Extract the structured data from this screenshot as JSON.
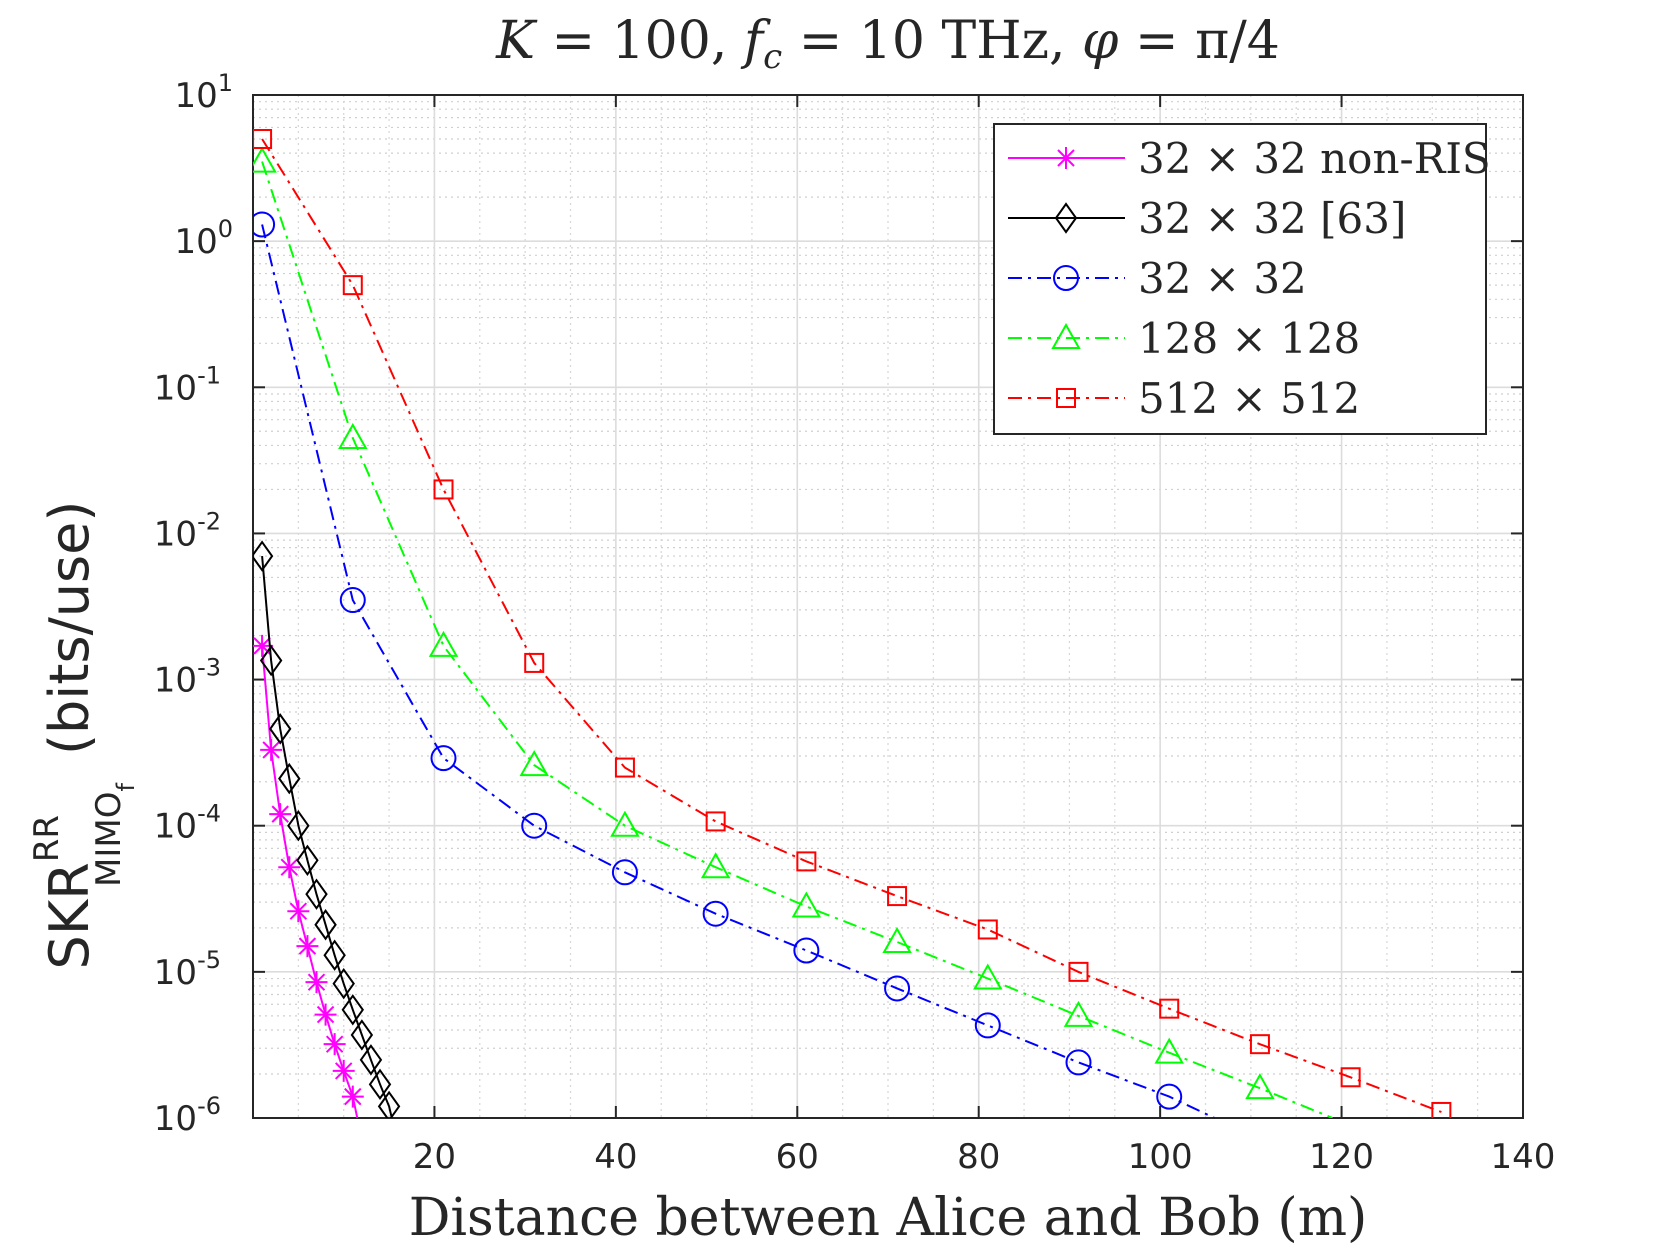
{
  "chart_data": {
    "type": "line",
    "title": "K = 100, f_c = 10 THz, φ = π/4",
    "title_parts": {
      "k": "K",
      "eq1": " = 100, ",
      "f": "f",
      "fsub": "c",
      "eq2": " = 10 THz, ",
      "phi": "φ",
      "eq3": " = π/4"
    },
    "xlabel": "Distance between Alice and Bob (m)",
    "ylabel": {
      "main": "SKR",
      "sup": "RR",
      "sub": "MIMO",
      "subsub": "f",
      "unit": "(bits/use)"
    },
    "xscale": "linear",
    "yscale": "log",
    "xlim": [
      0,
      140
    ],
    "ylim": [
      1e-06,
      10
    ],
    "xticks": [
      20,
      40,
      60,
      80,
      100,
      120,
      140
    ],
    "xtick_labels": [
      "20",
      "40",
      "60",
      "80",
      "100",
      "120",
      "140"
    ],
    "yticks": [
      {
        "value": 10,
        "base": "10",
        "exp": "1"
      },
      {
        "value": 1,
        "base": "10",
        "exp": "0"
      },
      {
        "value": 0.1,
        "base": "10",
        "exp": "-1"
      },
      {
        "value": 0.01,
        "base": "10",
        "exp": "-2"
      },
      {
        "value": 0.001,
        "base": "10",
        "exp": "-3"
      },
      {
        "value": 0.0001,
        "base": "10",
        "exp": "-4"
      },
      {
        "value": 1e-05,
        "base": "10",
        "exp": "-5"
      },
      {
        "value": 1e-06,
        "base": "10",
        "exp": "-6"
      }
    ],
    "grid": true,
    "minor_grid": true,
    "legend_position": "top-right",
    "series": [
      {
        "name": "32 × 32 non-RIS",
        "color": "#ff00ff",
        "marker": "asterisk",
        "linestyle": "solid",
        "x": [
          1,
          2,
          3,
          4,
          5,
          6,
          7,
          8,
          9,
          10,
          11
        ],
        "y": [
          0.0017,
          0.00033,
          0.00012,
          5.2e-05,
          2.6e-05,
          1.5e-05,
          8.5e-06,
          5.1e-06,
          3.2e-06,
          2.1e-06,
          1.4e-06
        ],
        "x_tail": [
          11,
          11.5
        ],
        "y_tail": [
          1.4e-06,
          1e-06
        ]
      },
      {
        "name": "32 × 32 [63]",
        "color": "#000000",
        "marker": "diamond",
        "linestyle": "solid",
        "x": [
          1,
          2,
          3,
          4,
          5,
          6,
          7,
          8,
          9,
          10,
          11,
          12,
          13,
          14,
          15
        ],
        "y": [
          0.007,
          0.00135,
          0.00046,
          0.00021,
          0.0001,
          5.8e-05,
          3.4e-05,
          2.1e-05,
          1.3e-05,
          8.3e-06,
          5.5e-06,
          3.7e-06,
          2.5e-06,
          1.7e-06,
          1.2e-06
        ],
        "x_tail": [
          15,
          15.3
        ],
        "y_tail": [
          1.2e-06,
          1e-06
        ]
      },
      {
        "name": "32 × 32",
        "color": "#0000ff",
        "marker": "circle",
        "linestyle": "dashdot",
        "x": [
          1,
          11,
          21,
          31,
          41,
          51,
          61,
          71,
          81,
          91,
          101
        ],
        "y": [
          1.3,
          0.0035,
          0.00029,
          0.0001,
          4.8e-05,
          2.5e-05,
          1.4e-05,
          7.7e-06,
          4.3e-06,
          2.4e-06,
          1.4e-06
        ],
        "x_tail": [
          101,
          106
        ],
        "y_tail": [
          1.4e-06,
          1e-06
        ]
      },
      {
        "name": "128 × 128",
        "color": "#00ff00",
        "marker": "triangle",
        "linestyle": "dashdot",
        "x": [
          1,
          11,
          21,
          31,
          41,
          51,
          61,
          71,
          81,
          91,
          101,
          111
        ],
        "y": [
          3.5,
          0.045,
          0.0017,
          0.00026,
          0.0001,
          5.2e-05,
          2.8e-05,
          1.6e-05,
          9e-06,
          5e-06,
          2.8e-06,
          1.6e-06
        ],
        "x_tail": [
          111,
          119
        ],
        "y_tail": [
          1.6e-06,
          1e-06
        ]
      },
      {
        "name": "512 × 512",
        "color": "#ff0000",
        "marker": "square",
        "linestyle": "dashdot",
        "x": [
          1,
          11,
          21,
          31,
          41,
          51,
          61,
          71,
          81,
          91,
          101,
          111,
          121,
          131
        ],
        "y": [
          5,
          0.5,
          0.02,
          0.0013,
          0.00025,
          0.000107,
          5.7e-05,
          3.3e-05,
          1.95e-05,
          1e-05,
          5.6e-06,
          3.2e-06,
          1.9e-06,
          1.1e-06
        ],
        "x_tail": [],
        "y_tail": []
      }
    ]
  }
}
